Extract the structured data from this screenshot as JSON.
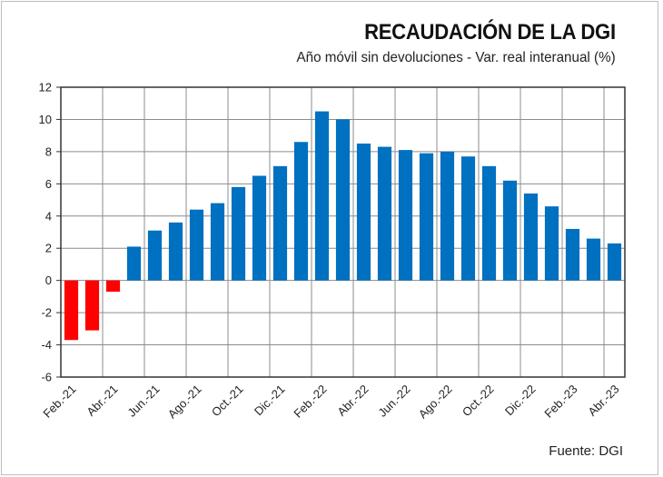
{
  "chart_data": {
    "type": "bar",
    "title": "RECAUDACIÓN  DE LA DGI",
    "subtitle": "Año móvil sin devoluciones - Var. real interanual  (%)",
    "source": "Fuente: DGI",
    "xlabel": "",
    "ylabel": "",
    "ylim": [
      -6,
      12
    ],
    "yticks": [
      12,
      10,
      8,
      6,
      4,
      2,
      0,
      -2,
      -4,
      -6
    ],
    "grid": true,
    "categories": [
      "Feb.-21",
      "Mar.-21",
      "Abr.-21",
      "May.-21",
      "Jun.-21",
      "Jul.-21",
      "Ago.-21",
      "Sep.-21",
      "Oct.-21",
      "Nov.-21",
      "Dic.-21",
      "Ene.-22",
      "Feb.-22",
      "Mar.-22",
      "Abr.-22",
      "May.-22",
      "Jun.-22",
      "Jul.-22",
      "Ago.-22",
      "Sep.-22",
      "Oct.-22",
      "Nov.-22",
      "Dic.-22",
      "Ene.-23",
      "Feb.-23",
      "Mar.-23",
      "Abr.-23"
    ],
    "xtick_labels": [
      "Feb.-21",
      "Abr.-21",
      "Jun.-21",
      "Ago.-21",
      "Oct.-21",
      "Dic.-21",
      "Feb.-22",
      "Abr.-22",
      "Jun.-22",
      "Ago.-22",
      "Oct.-22",
      "Dic.-22",
      "Feb.-23",
      "Abr.-23"
    ],
    "values": [
      -3.7,
      -3.1,
      -0.7,
      2.1,
      3.1,
      3.6,
      4.4,
      4.8,
      5.8,
      6.5,
      7.1,
      8.6,
      10.5,
      10.0,
      8.5,
      8.3,
      8.1,
      7.9,
      8.0,
      7.7,
      7.1,
      6.2,
      5.4,
      4.6,
      3.2,
      2.6,
      2.3
    ],
    "colors": {
      "positive": "#0070C0",
      "negative": "#FF0000",
      "grid": "#8c8c8c",
      "axis": "#333333"
    }
  }
}
